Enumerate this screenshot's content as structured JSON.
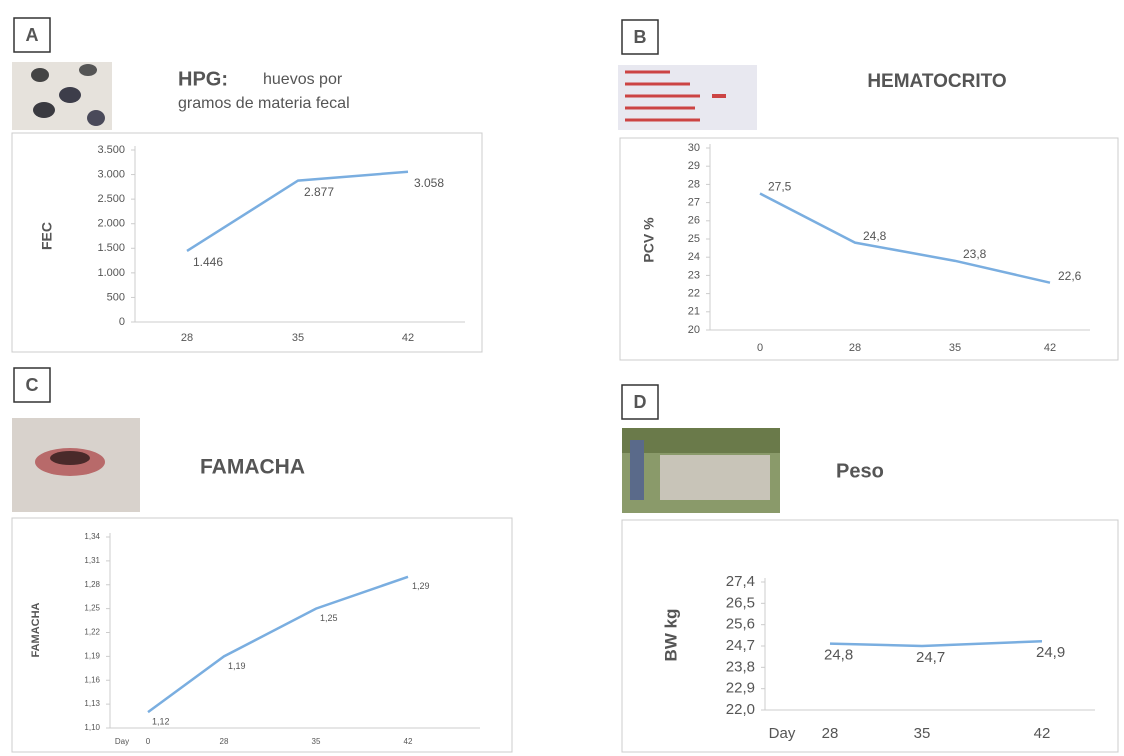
{
  "chart_data": [
    {
      "type": "line",
      "panel": "A",
      "title": "HPG:",
      "subtitle": [
        "huevos por",
        "gramos de materia fecal"
      ],
      "ylabel": "FEC",
      "categories": [
        "28",
        "35",
        "42"
      ],
      "values": [
        1446,
        2877,
        3058
      ],
      "value_labels": [
        "1.446",
        "2.877",
        "3.058"
      ],
      "color": "#7aaee0",
      "ylim": [
        0,
        3500
      ],
      "yticks": [
        0,
        500,
        {
          "value": 1000,
          "label": "1.000"
        },
        {
          "value": 1500,
          "label": "1.500"
        },
        {
          "value": 2000,
          "label": "2.000"
        },
        {
          "value": 2500,
          "label": "2.500"
        },
        {
          "value": 3000,
          "label": "3.000"
        },
        {
          "value": 3500,
          "label": "3.500"
        }
      ]
    },
    {
      "type": "line",
      "panel": "B",
      "title": "HEMATOCRITO",
      "ylabel": "PCV %",
      "categories": [
        "0",
        "28",
        "35",
        "42"
      ],
      "values": [
        27.5,
        24.8,
        23.8,
        22.6
      ],
      "value_labels": [
        "27,5",
        "24,8",
        "23,8",
        "22,6"
      ],
      "color": "#7aaee0",
      "ylim": [
        20,
        30
      ],
      "yticks": [
        20,
        21,
        22,
        23,
        24,
        25,
        26,
        27,
        28,
        29,
        30
      ]
    },
    {
      "type": "line",
      "panel": "C",
      "title": "FAMACHA",
      "ylabel": "FAMACHA",
      "xlabel": "Day",
      "categories": [
        "0",
        "28",
        "35",
        "42"
      ],
      "values": [
        1.12,
        1.19,
        1.25,
        1.29
      ],
      "value_labels": [
        "1,12",
        "1,19",
        "1,25",
        "1,29"
      ],
      "color": "#7aaee0",
      "ylim": [
        1.1,
        1.34
      ],
      "yticks": [
        {
          "value": 1.1,
          "label": "1,10"
        },
        {
          "value": 1.13,
          "label": "1,13"
        },
        {
          "value": 1.16,
          "label": "1,16"
        },
        {
          "value": 1.19,
          "label": "1,19"
        },
        {
          "value": 1.22,
          "label": "1,22"
        },
        {
          "value": 1.25,
          "label": "1,25"
        },
        {
          "value": 1.28,
          "label": "1,28"
        },
        {
          "value": 1.31,
          "label": "1,31"
        },
        {
          "value": 1.34,
          "label": "1,34"
        }
      ]
    },
    {
      "type": "line",
      "panel": "D",
      "title": "Peso",
      "ylabel": "BW  kg",
      "xlabel": "Day",
      "categories": [
        "28",
        "35",
        "42"
      ],
      "values": [
        24.8,
        24.7,
        24.9
      ],
      "value_labels": [
        "24,8",
        "24,7",
        "24,9"
      ],
      "color": "#7aaee0",
      "ylim": [
        22.0,
        27.4
      ],
      "yticks": [
        {
          "value": 22.0,
          "label": "22,0"
        },
        {
          "value": 22.9,
          "label": "22,9"
        },
        {
          "value": 23.8,
          "label": "23,8"
        },
        {
          "value": 24.7,
          "label": "24,7"
        },
        {
          "value": 25.6,
          "label": "25,6"
        },
        {
          "value": 26.5,
          "label": "26,5"
        },
        {
          "value": 27.4,
          "label": "27,4"
        }
      ]
    }
  ]
}
